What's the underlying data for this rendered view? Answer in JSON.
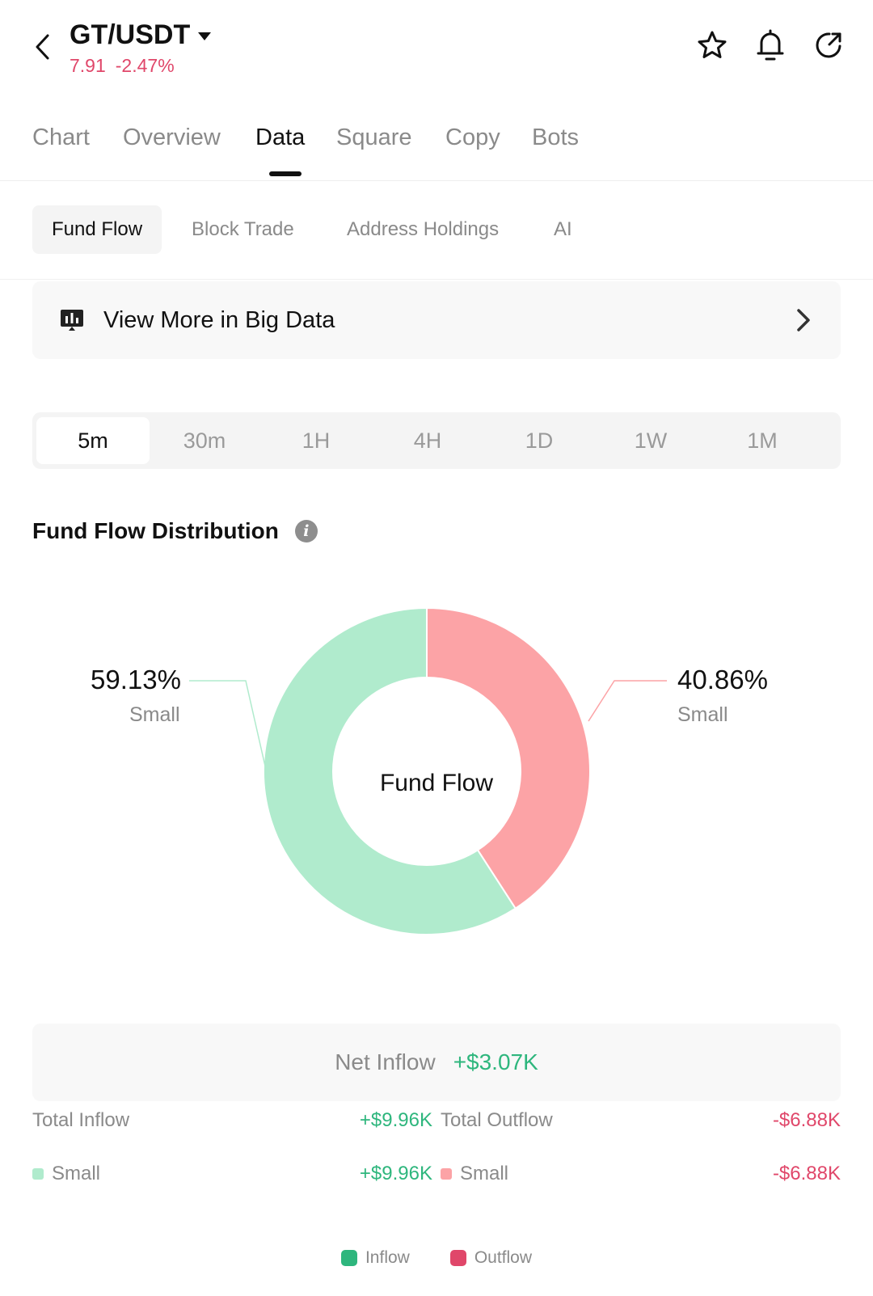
{
  "header": {
    "pair": "GT/USDT",
    "price": "7.91",
    "change": "-2.47%"
  },
  "main_tabs": [
    {
      "label": "Chart"
    },
    {
      "label": "Overview"
    },
    {
      "label": "Data"
    },
    {
      "label": "Square"
    },
    {
      "label": "Copy"
    },
    {
      "label": "Bots"
    }
  ],
  "active_main_tab": "Data",
  "sub_tabs": [
    {
      "label": "Fund Flow"
    },
    {
      "label": "Block Trade"
    },
    {
      "label": "Address Holdings"
    },
    {
      "label": "AI"
    }
  ],
  "active_sub_tab": "Fund Flow",
  "banner": {
    "label": "View More in Big Data"
  },
  "timeframes": [
    "5m",
    "30m",
    "1H",
    "4H",
    "1D",
    "1W",
    "1M"
  ],
  "active_timeframe": "5m",
  "section": {
    "title": "Fund Flow Distribution"
  },
  "chart_data": {
    "type": "pie",
    "title": "Fund Flow",
    "series": [
      {
        "name": "Small",
        "group": "Outflow",
        "value": 40.86,
        "label": "40.86%",
        "color": "#fca3a6"
      },
      {
        "name": "Small",
        "group": "Inflow",
        "value": 59.13,
        "label": "59.13%",
        "color": "#b0ebcd"
      }
    ],
    "legend": [
      "Inflow",
      "Outflow"
    ]
  },
  "summary": {
    "net_label": "Net Inflow",
    "net_value": "+$3.07K",
    "total_inflow_label": "Total Inflow",
    "total_inflow_value": "+$9.96K",
    "total_outflow_label": "Total Outflow",
    "total_outflow_value": "-$6.88K",
    "inflow_small_label": "Small",
    "inflow_small_value": "+$9.96K",
    "outflow_small_label": "Small",
    "outflow_small_value": "-$6.88K"
  },
  "legend": {
    "inflow": "Inflow",
    "outflow": "Outflow"
  },
  "colors": {
    "green": "#2eb67d",
    "red": "#e0476a",
    "inflow_light": "#b0ebcd",
    "outflow_light": "#fca3a6"
  }
}
